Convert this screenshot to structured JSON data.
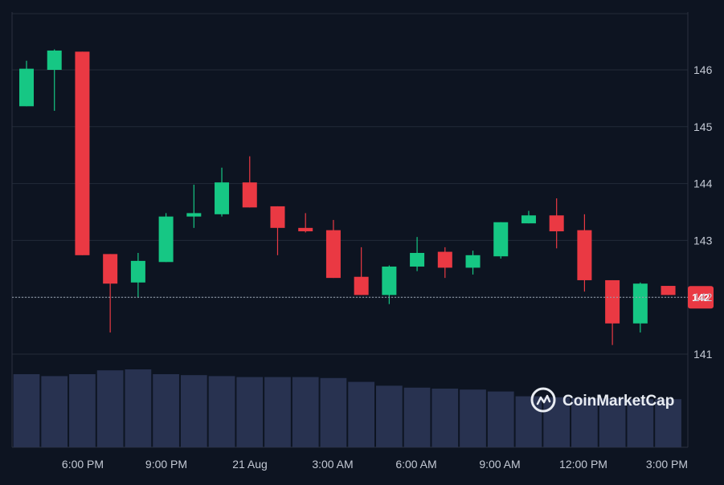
{
  "chart_data": {
    "type": "candlestick",
    "ylim": [
      140,
      147
    ],
    "y_ticks": [
      "141",
      "142",
      "143",
      "144",
      "145",
      "146"
    ],
    "x_tick_labels": [
      "6:00 PM",
      "9:00 PM",
      "21 Aug",
      "3:00 AM",
      "6:00 AM",
      "9:00 AM",
      "12:00 PM",
      "3:00 PM"
    ],
    "current_price_label": "142",
    "current_price": 142.0,
    "candles": [
      {
        "open": 145.36,
        "high": 146.16,
        "low": 145.36,
        "close": 146.02
      },
      {
        "open": 146.0,
        "high": 146.36,
        "low": 145.28,
        "close": 146.34
      },
      {
        "open": 146.32,
        "high": 146.32,
        "low": 142.74,
        "close": 142.74
      },
      {
        "open": 142.76,
        "high": 142.76,
        "low": 141.38,
        "close": 142.24
      },
      {
        "open": 142.26,
        "high": 142.78,
        "low": 142.0,
        "close": 142.64
      },
      {
        "open": 142.62,
        "high": 143.48,
        "low": 142.62,
        "close": 143.42
      },
      {
        "open": 143.42,
        "high": 143.98,
        "low": 143.22,
        "close": 143.48
      },
      {
        "open": 143.46,
        "high": 144.28,
        "low": 143.42,
        "close": 144.02
      },
      {
        "open": 144.02,
        "high": 144.48,
        "low": 143.58,
        "close": 143.58
      },
      {
        "open": 143.6,
        "high": 143.6,
        "low": 142.74,
        "close": 143.22
      },
      {
        "open": 143.22,
        "high": 143.48,
        "low": 143.14,
        "close": 143.16
      },
      {
        "open": 143.18,
        "high": 143.36,
        "low": 142.34,
        "close": 142.34
      },
      {
        "open": 142.36,
        "high": 142.88,
        "low": 142.04,
        "close": 142.04
      },
      {
        "open": 142.04,
        "high": 142.56,
        "low": 141.88,
        "close": 142.54
      },
      {
        "open": 142.54,
        "high": 143.06,
        "low": 142.46,
        "close": 142.78
      },
      {
        "open": 142.8,
        "high": 142.88,
        "low": 142.34,
        "close": 142.52
      },
      {
        "open": 142.52,
        "high": 142.82,
        "low": 142.4,
        "close": 142.74
      },
      {
        "open": 142.72,
        "high": 143.32,
        "low": 142.68,
        "close": 143.32
      },
      {
        "open": 143.3,
        "high": 143.52,
        "low": 143.3,
        "close": 143.44
      },
      {
        "open": 143.44,
        "high": 143.74,
        "low": 142.86,
        "close": 143.16
      },
      {
        "open": 143.18,
        "high": 143.46,
        "low": 142.1,
        "close": 142.3
      },
      {
        "open": 142.3,
        "high": 142.3,
        "low": 141.16,
        "close": 141.54
      },
      {
        "open": 141.54,
        "high": 142.26,
        "low": 141.38,
        "close": 142.24
      },
      {
        "open": 142.2,
        "high": 142.2,
        "low": 142.04,
        "close": 142.04
      }
    ],
    "volumes": [
      0.76,
      0.74,
      0.76,
      0.8,
      0.81,
      0.76,
      0.75,
      0.74,
      0.73,
      0.73,
      0.73,
      0.72,
      0.68,
      0.64,
      0.62,
      0.61,
      0.6,
      0.58,
      0.53,
      0.52,
      0.51,
      0.51,
      0.5,
      0.5
    ],
    "colors": {
      "up": "#16c784",
      "down": "#ea3943",
      "volume": "#283250",
      "grid": "#222a38",
      "background": "#0d1421"
    }
  },
  "watermark": {
    "text": "CoinMarketCap",
    "icon": "coinmarketcap-logo-icon"
  }
}
